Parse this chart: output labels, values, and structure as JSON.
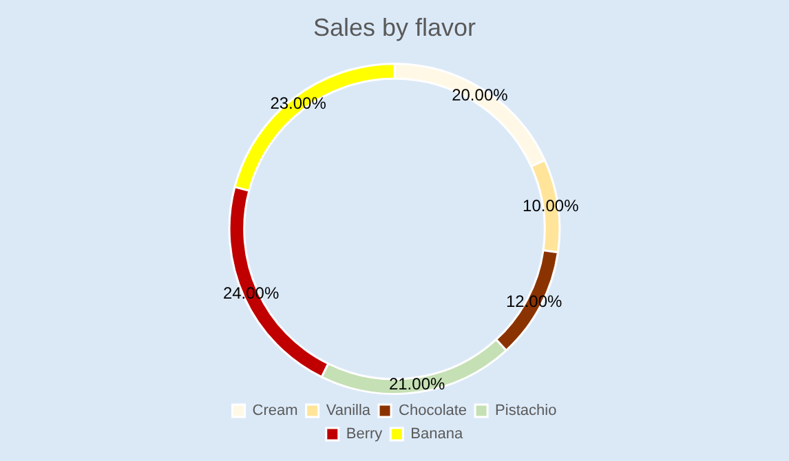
{
  "chart_data": {
    "type": "donut",
    "title": "Sales by flavor",
    "categories": [
      "Cream",
      "Vanilla",
      "Chocolate",
      "Pistachio",
      "Berry",
      "Banana"
    ],
    "values": [
      20,
      10,
      12,
      21,
      24,
      23
    ],
    "value_labels": [
      "20.00%",
      "10.00%",
      "12.00%",
      "21.00%",
      "24.00%",
      "23.00%"
    ],
    "colors": [
      "#fff8e6",
      "#ffe49a",
      "#8b3300",
      "#c5e0b4",
      "#c00000",
      "#ffff00"
    ],
    "legend": "bottom"
  }
}
